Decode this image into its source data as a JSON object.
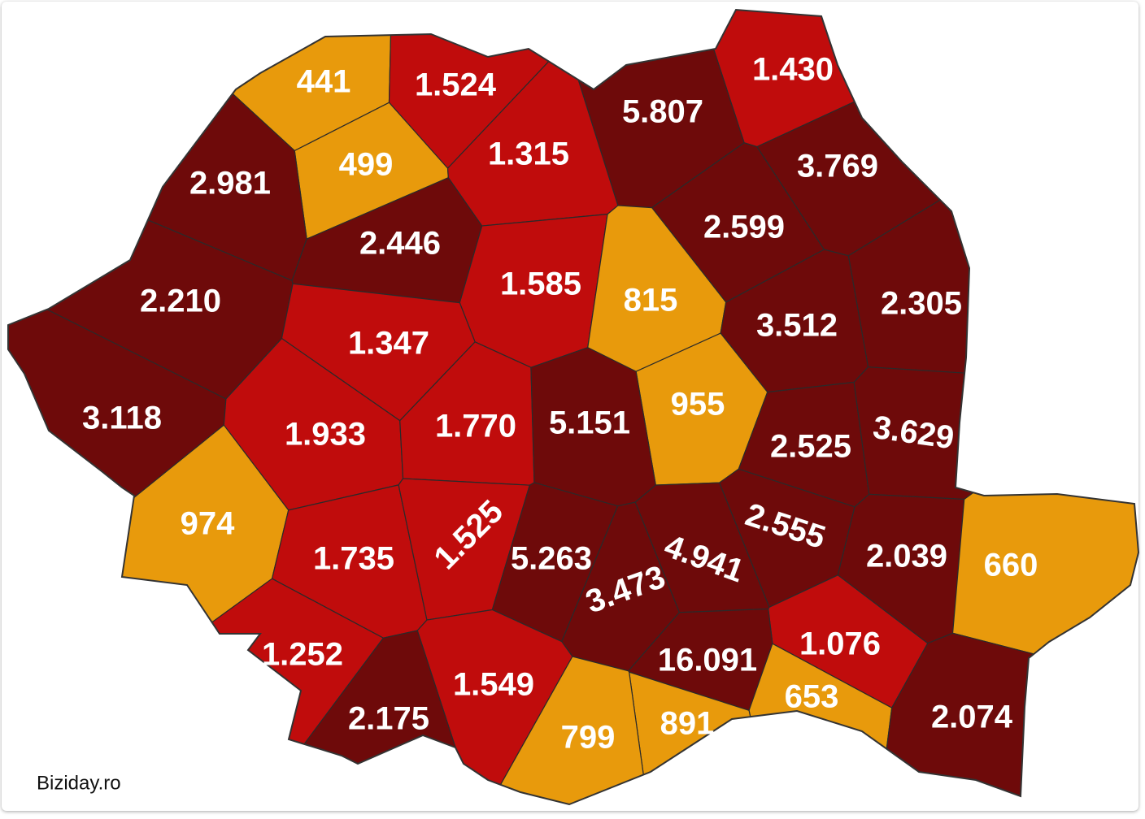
{
  "map": {
    "regions": [
      {
        "label": "441",
        "fill": "#e89a0c"
      },
      {
        "label": "1.524",
        "fill": "#c00c0c"
      },
      {
        "label": "1.430",
        "fill": "#c00c0c"
      },
      {
        "label": "5.807",
        "fill": "#6e0a0a"
      },
      {
        "label": "499",
        "fill": "#e89a0c"
      },
      {
        "label": "1.315",
        "fill": "#c00c0c"
      },
      {
        "label": "3.769",
        "fill": "#6e0a0a"
      },
      {
        "label": "2.981",
        "fill": "#6e0a0a"
      },
      {
        "label": "2.446",
        "fill": "#6e0a0a"
      },
      {
        "label": "2.599",
        "fill": "#6e0a0a"
      },
      {
        "label": "1.585",
        "fill": "#c00c0c"
      },
      {
        "label": "815",
        "fill": "#e89a0c"
      },
      {
        "label": "2.210",
        "fill": "#6e0a0a"
      },
      {
        "label": "2.305",
        "fill": "#6e0a0a"
      },
      {
        "label": "3.512",
        "fill": "#6e0a0a"
      },
      {
        "label": "1.347",
        "fill": "#c00c0c"
      },
      {
        "label": "955",
        "fill": "#e89a0c"
      },
      {
        "label": "3.118",
        "fill": "#6e0a0a"
      },
      {
        "label": "1.933",
        "fill": "#c00c0c"
      },
      {
        "label": "1.770",
        "fill": "#c00c0c"
      },
      {
        "label": "5.151",
        "fill": "#6e0a0a"
      },
      {
        "label": "2.525",
        "fill": "#6e0a0a"
      },
      {
        "label": "3.629",
        "fill": "#6e0a0a"
      },
      {
        "label": "974",
        "fill": "#e89a0c"
      },
      {
        "label": "2.555",
        "fill": "#6e0a0a"
      },
      {
        "label": "1.735",
        "fill": "#c00c0c"
      },
      {
        "label": "1.525",
        "fill": "#c00c0c"
      },
      {
        "label": "5.263",
        "fill": "#6e0a0a"
      },
      {
        "label": "4.941",
        "fill": "#6e0a0a"
      },
      {
        "label": "2.039",
        "fill": "#6e0a0a"
      },
      {
        "label": "660",
        "fill": "#e89a0c"
      },
      {
        "label": "3.473",
        "fill": "#6e0a0a"
      },
      {
        "label": "1.252",
        "fill": "#c00c0c"
      },
      {
        "label": "1.076",
        "fill": "#c00c0c"
      },
      {
        "label": "16.091",
        "fill": "#6e0a0a"
      },
      {
        "label": "1.549",
        "fill": "#c00c0c"
      },
      {
        "label": "653",
        "fill": "#e89a0c"
      },
      {
        "label": "2.175",
        "fill": "#6e0a0a"
      },
      {
        "label": "891",
        "fill": "#e89a0c"
      },
      {
        "label": "2.074",
        "fill": "#6e0a0a"
      },
      {
        "label": "799",
        "fill": "#e89a0c"
      }
    ]
  },
  "credit": "Biziday.ro"
}
